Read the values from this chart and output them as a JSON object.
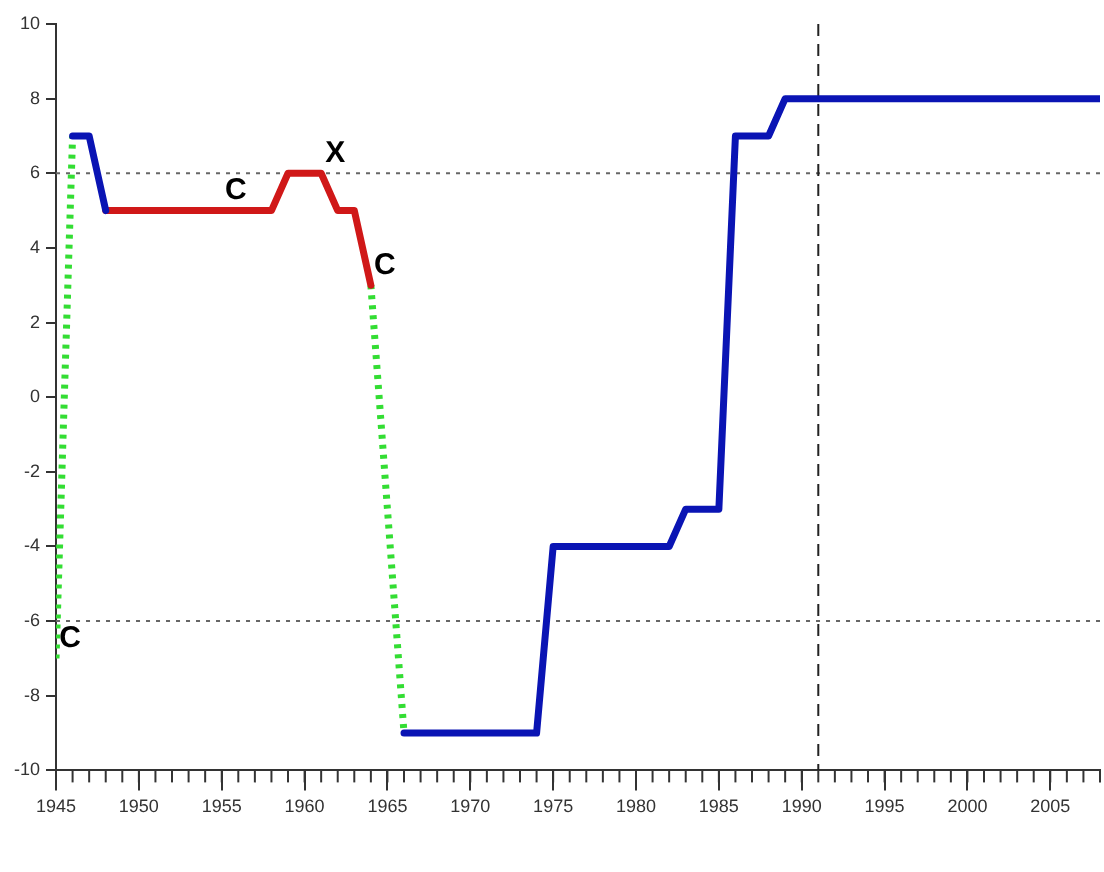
{
  "chart_data": {
    "type": "line",
    "xlim": [
      1945,
      2008
    ],
    "xticks": [
      1945,
      1950,
      1955,
      1960,
      1965,
      1970,
      1975,
      1980,
      1985,
      1990,
      1995,
      2000,
      2005
    ],
    "ylim": [
      -10,
      10
    ],
    "yticks": [
      -10,
      -8,
      -6,
      -4,
      -2,
      0,
      2,
      4,
      6,
      8,
      10
    ],
    "grid": false,
    "legend": false,
    "marker": "none",
    "series": [
      {
        "color": "#0a14b4",
        "line_style": "solid",
        "x": [
          1946,
          1947,
          1948,
          1957,
          1966,
          1974,
          1975,
          1982,
          1983,
          1985,
          1986,
          1988,
          1989,
          2008
        ],
        "values": [
          7,
          7,
          5,
          null,
          -9,
          -9,
          -4,
          -4,
          -3,
          -3,
          7,
          7,
          8,
          8
        ]
      },
      {
        "color": "#d01818",
        "line_style": "solid",
        "x": [
          1948,
          1958,
          1959,
          1961,
          1962,
          1963,
          1964
        ],
        "values": [
          5,
          5,
          6,
          6,
          5,
          5,
          3
        ]
      },
      {
        "color": "#33dd33",
        "line_style": "dotted",
        "x": [
          1945,
          1946,
          1955,
          1964,
          1966
        ],
        "values": [
          -7,
          7,
          null,
          3,
          -9
        ]
      }
    ],
    "ref_lines": [
      {
        "axis": "y",
        "value": 6,
        "line_style": "dotted",
        "color": "#666666"
      },
      {
        "axis": "y",
        "value": -6,
        "line_style": "dotted",
        "color": "#666666"
      },
      {
        "axis": "x",
        "value": 1991,
        "line_style": "dashed",
        "color": "#222222"
      }
    ],
    "annotations": [
      {
        "text": "C",
        "x": 1945,
        "y": -7
      },
      {
        "text": "C",
        "x": 1955,
        "y": 5
      },
      {
        "text": "X",
        "x": 1961,
        "y": 6
      },
      {
        "text": "C",
        "x": 1964,
        "y": 3
      }
    ]
  }
}
